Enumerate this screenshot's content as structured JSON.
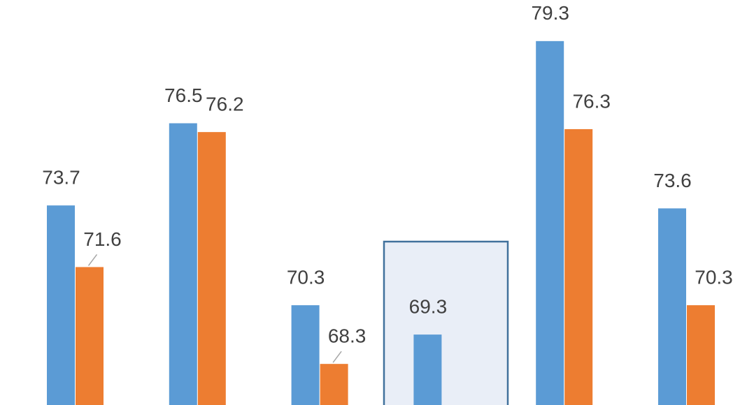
{
  "chart_data": {
    "type": "bar",
    "categories": [
      null,
      null,
      null,
      null,
      null,
      null
    ],
    "series": [
      {
        "color": "#5b9bd5",
        "values": [
          73.7,
          76.5,
          70.3,
          69.3,
          79.3,
          73.6
        ]
      },
      {
        "color": "#ed7d31",
        "values": [
          71.6,
          76.2,
          68.3,
          null,
          76.3,
          70.3
        ]
      }
    ],
    "ylim": [
      66.9,
      80.7
    ]
  }
}
